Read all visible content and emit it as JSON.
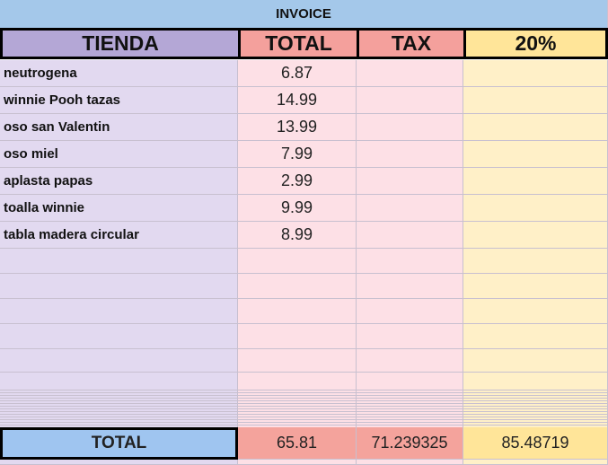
{
  "title": "INVOICE",
  "headers": [
    "TIENDA",
    "TOTAL",
    "TAX",
    "20%"
  ],
  "rows": [
    [
      "neutrogena",
      6.87
    ],
    [
      "winnie Pooh tazas",
      14.99
    ],
    [
      "oso san Valentin",
      13.99
    ],
    [
      "oso miel",
      7.99
    ],
    [
      "aplasta papas",
      2.99
    ],
    [
      "toalla winnie",
      9.99
    ],
    [
      "tabla madera circular",
      8.99
    ]
  ],
  "total_row": [
    "TOTAL",
    65.81,
    71.239325,
    85.48719
  ]
}
